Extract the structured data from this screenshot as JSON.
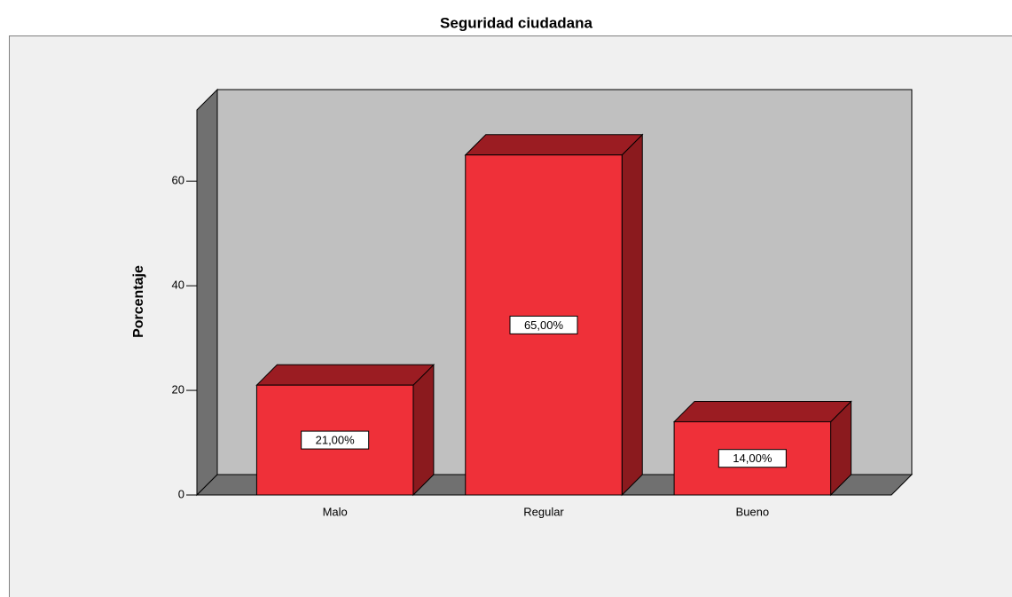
{
  "chart_data": {
    "type": "bar3d",
    "title": "Seguridad ciudadana",
    "y_label": "Porcentaje",
    "categories": [
      "Malo",
      "Regular",
      "Bueno"
    ],
    "values": [
      21,
      65,
      14
    ],
    "value_labels": [
      "21,00%",
      "65,00%",
      "14,00%"
    ],
    "color": "#ef3039",
    "ylim": [
      0,
      73.6
    ],
    "yticks": [
      0,
      20,
      40,
      60
    ]
  }
}
